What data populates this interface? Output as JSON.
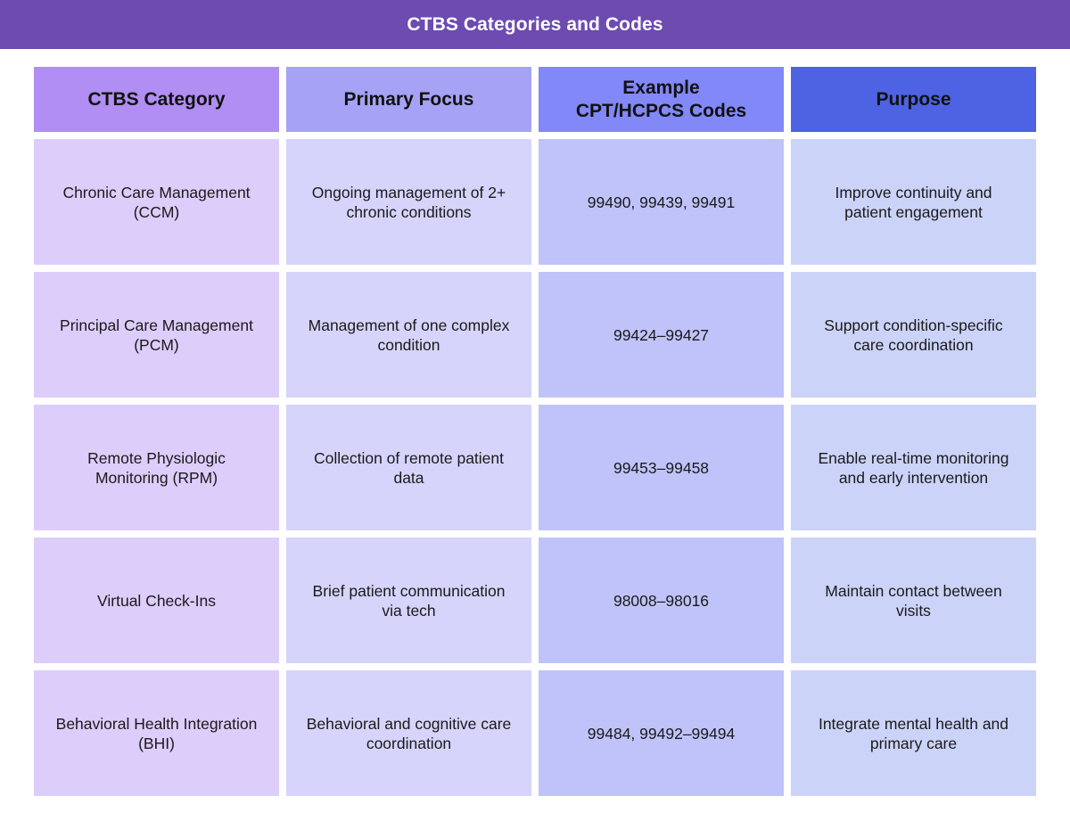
{
  "title": "CTBS Categories and Codes",
  "colors": {
    "title_bar": "#6d4bb1",
    "header_category": "#b08ef3",
    "header_focus": "#a6a2f5",
    "header_codes": "#8288f7",
    "header_purpose": "#4d63e3",
    "cell_category": "#dccdfb",
    "cell_focus": "#d6d4fb",
    "cell_codes": "#c0c3f9",
    "cell_purpose": "#ccd3f8"
  },
  "table": {
    "headers": [
      "CTBS Category",
      "Primary Focus",
      "Example CPT/HCPCS Codes",
      "Purpose"
    ],
    "rows": [
      [
        "Chronic Care Management (CCM)",
        "Ongoing management of 2+ chronic conditions",
        "99490, 99439, 99491",
        "Improve continuity and patient engagement"
      ],
      [
        "Principal Care Management (PCM)",
        "Management of one complex condition",
        "99424–99427",
        "Support condition-specific care coordination"
      ],
      [
        "Remote Physiologic Monitoring (RPM)",
        "Collection of remote patient data",
        "99453–99458",
        "Enable real-time monitoring and early intervention"
      ],
      [
        "Virtual Check-Ins",
        "Brief patient communication via tech",
        "98008–98016",
        "Maintain contact between visits"
      ],
      [
        "Behavioral Health Integration (BHI)",
        "Behavioral and cognitive care coordination",
        "99484, 99492–99494",
        "Integrate mental health and primary care"
      ]
    ]
  }
}
